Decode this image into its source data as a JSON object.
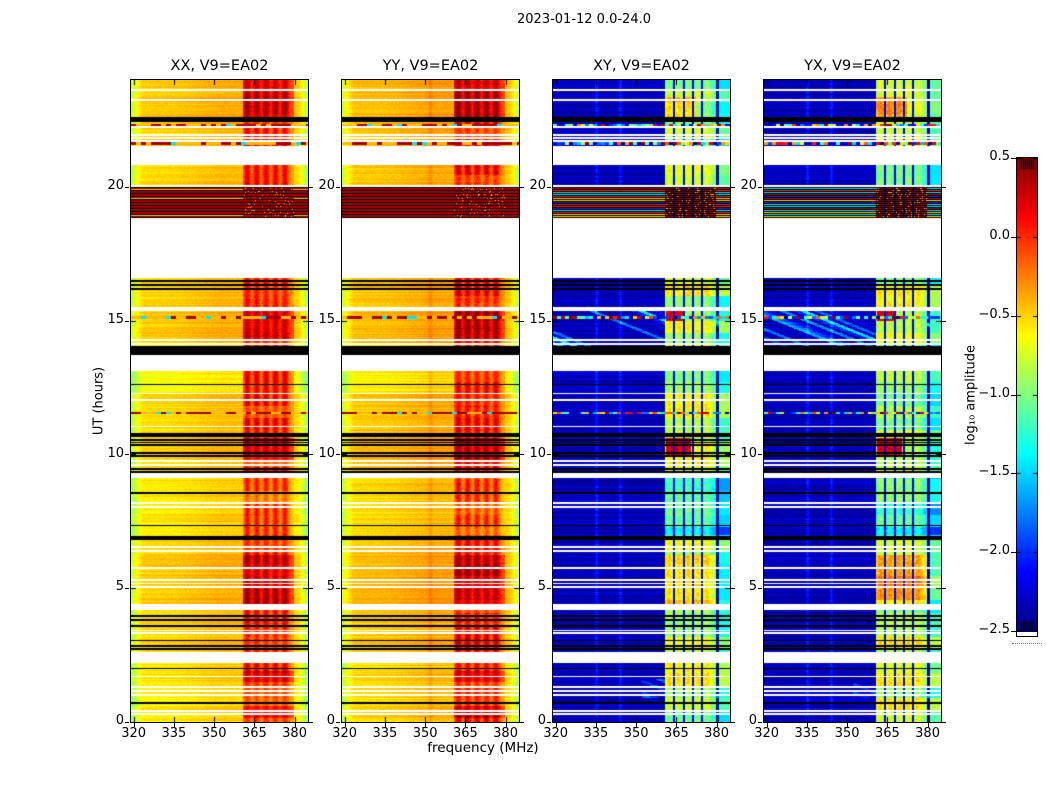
{
  "figure": {
    "background_color": "#ffffff",
    "frame_color": "#000000",
    "text_color": "#000000"
  },
  "chart_data": {
    "type": "heatmap",
    "title": "2023-01-12 0.0-24.0",
    "xlabel": "frequency (MHz)",
    "ylabel": "UT (hours)",
    "x_range": [
      319,
      385
    ],
    "x_ticks": [
      320,
      335,
      350,
      365,
      380
    ],
    "y_range": [
      0,
      24
    ],
    "y_ticks": [
      0,
      5,
      10,
      15,
      20
    ],
    "grid": false,
    "colorbar": {
      "label": "log₁₀ amplitude",
      "vmin": -2.5,
      "vmax": 0.5,
      "colormap": "jet",
      "ticks": [
        {
          "label": "0.5",
          "value": 0.5
        },
        {
          "label": "0.0",
          "value": 0.0
        },
        {
          "label": "−0.5",
          "value": -0.5
        },
        {
          "label": "−1.0",
          "value": -1.0
        },
        {
          "label": "−1.5",
          "value": -1.5
        },
        {
          "label": "−2.0",
          "value": -2.0
        },
        {
          "label": "−2.5",
          "value": -2.5
        }
      ]
    },
    "panels": [
      {
        "title": "XX, V9=EA02",
        "kind": "auto",
        "base_level": -0.52
      },
      {
        "title": "YY, V9=EA02",
        "kind": "auto",
        "base_level": -0.47
      },
      {
        "title": "XY, V9=EA02",
        "kind": "cross",
        "base_level": -2.33
      },
      {
        "title": "YX, V9=EA02",
        "kind": "cross",
        "base_level": -2.33
      }
    ],
    "features": {
      "rfi_band_mhz": [
        360.6,
        379.6
      ],
      "rfi_stripes_mhz": [
        362.4,
        365.9,
        369.4,
        372.9,
        376.4
      ],
      "rfi_dark_separators_mhz": [
        364.1,
        367.7,
        371.2,
        374.7
      ],
      "faint_lines_mhz": [
        335.3,
        344.2
      ],
      "auto_faint_line_mhz": 352,
      "data_gaps_ut": [
        [
          2.2,
          2.62
        ],
        [
          4.2,
          4.4
        ],
        [
          9.12,
          9.3
        ],
        [
          13.12,
          13.72
        ],
        [
          15.38,
          15.52
        ],
        [
          16.6,
          18.84
        ],
        [
          20.9,
          21.53
        ]
      ],
      "black_bands_ut": [
        [
          6.8,
          6.97
        ],
        [
          13.72,
          14.06
        ],
        [
          22.42,
          22.6
        ]
      ],
      "saturated_band_ut": [
        18.84,
        20.07
      ],
      "white_lines_ut": [
        0.3,
        0.42,
        1.0,
        1.15,
        1.3,
        1.7,
        3.32,
        3.42,
        5.05,
        5.18,
        5.3,
        5.75,
        6.4,
        6.55,
        8.05,
        8.2,
        9.62,
        9.75,
        11.05,
        12.05,
        12.28,
        14.12,
        14.28,
        20.05,
        20.85,
        21.72,
        21.82,
        21.95,
        22.25,
        23.25,
        23.62
      ],
      "black_lines_ut": [
        0.7,
        2.0,
        2.72,
        2.85,
        3.05,
        3.6,
        3.8,
        3.95,
        7.35,
        8.55,
        9.35,
        9.45,
        9.95,
        10.05,
        10.35,
        10.45,
        10.55,
        10.68,
        10.78,
        12.62,
        16.2,
        16.35,
        16.5
      ],
      "speckle_rows_ut": [
        11.55,
        15.12,
        21.62,
        22.32
      ],
      "streak_regions_ut": [
        [
          14.06,
          15.38
        ],
        [
          0.9,
          1.6
        ]
      ],
      "hot_windows_ut": [
        [
          0.15,
          0.6
        ],
        [
          1.5,
          1.9
        ],
        [
          4.4,
          6.25
        ],
        [
          9.8,
          10.62
        ],
        [
          14.3,
          15.38
        ],
        [
          22.6,
          24.0
        ]
      ],
      "quiet_window_ut": [
        7.0,
        9.12
      ],
      "cross_red_events": [
        {
          "ut": [
            9.95,
            10.62
          ],
          "mhz": [
            361,
            370.3
          ]
        },
        {
          "ut": [
            15.0,
            15.38
          ],
          "mhz": [
            361,
            367.5
          ]
        }
      ],
      "cross_warm_windows": [
        [
          4.4,
          6.25
        ],
        [
          22.6,
          23.35
        ]
      ]
    }
  }
}
